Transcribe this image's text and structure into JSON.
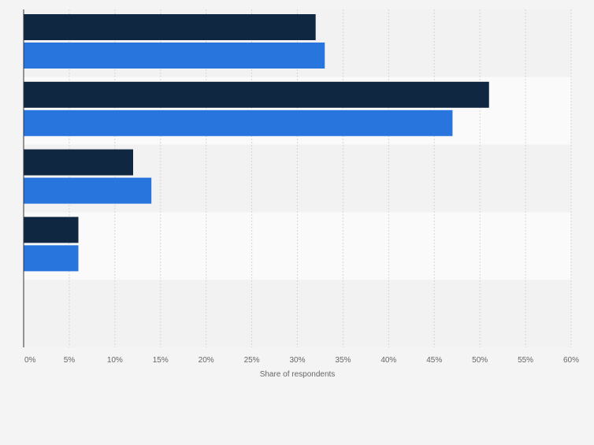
{
  "chart_data": {
    "type": "bar",
    "orientation": "horizontal",
    "categories": [
      "",
      "",
      "",
      "",
      ""
    ],
    "series": [
      {
        "name": "",
        "color": "#0f2741",
        "values": [
          32,
          51,
          12,
          6,
          null
        ]
      },
      {
        "name": "",
        "color": "#2876dd",
        "values": [
          33,
          47,
          14,
          6,
          null
        ]
      }
    ],
    "xlabel": "Share of respondents",
    "ylabel": "",
    "xlim": [
      0,
      60
    ],
    "x_ticks": [
      0,
      5,
      10,
      15,
      20,
      25,
      30,
      35,
      40,
      45,
      50,
      55,
      60
    ],
    "x_tick_labels": [
      "0%",
      "5%",
      "10%",
      "15%",
      "20%",
      "25%",
      "30%",
      "35%",
      "40%",
      "45%",
      "50%",
      "55%",
      "60%"
    ],
    "grid": true,
    "band_colors": [
      "#f2f2f2",
      "#fafafa"
    ]
  }
}
